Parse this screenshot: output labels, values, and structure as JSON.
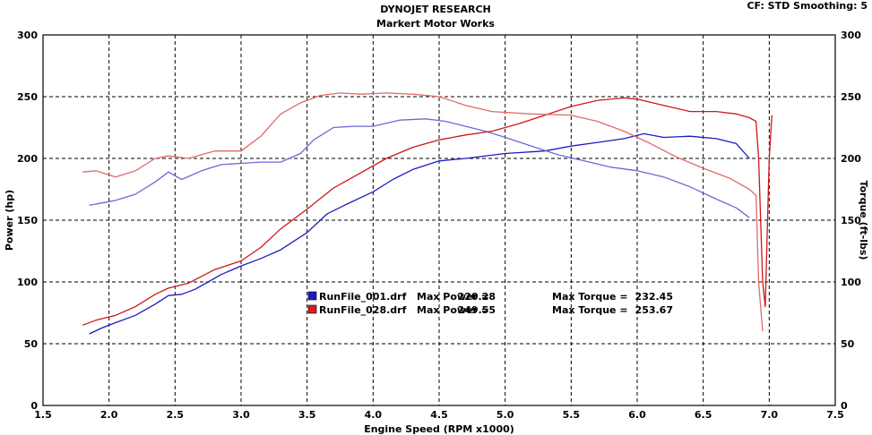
{
  "header": {
    "title": "DYNOJET RESEARCH",
    "subtitle": "Markert Motor Works",
    "settings": "CF: STD  Smoothing: 5"
  },
  "chart_data": {
    "type": "line",
    "xlabel": "Engine Speed (RPM x1000)",
    "ylabel_left": "Power (hp)",
    "ylabel_right": "Torque (ft-lbs)",
    "xlim": [
      1.5,
      7.5
    ],
    "ylim": [
      0,
      300
    ],
    "x_ticks": [
      "1.5",
      "2.0",
      "2.5",
      "3.0",
      "3.5",
      "4.0",
      "4.5",
      "5.0",
      "5.5",
      "6.0",
      "6.5",
      "7.0",
      "7.5"
    ],
    "y_ticks": [
      "0",
      "50",
      "100",
      "150",
      "200",
      "250",
      "300"
    ],
    "grid": true,
    "legend": [
      {
        "file": "RunFile_001.drf",
        "max_power_label": "Max Power =",
        "max_power": "220.28",
        "max_torque_label": "Max Torque =",
        "max_torque": "232.45",
        "color": "#1c1cc0"
      },
      {
        "file": "RunFile_028.drf",
        "max_power_label": "Max Power =",
        "max_power": "249.55",
        "max_torque_label": "Max Torque =",
        "max_torque": "253.67",
        "color": "#d02020"
      }
    ],
    "series": [
      {
        "run": "RunFile_001.drf",
        "measure": "power",
        "color": "#1c1cc0",
        "x": [
          1.85,
          1.95,
          2.05,
          2.2,
          2.35,
          2.45,
          2.55,
          2.65,
          2.75,
          2.85,
          3.0,
          3.15,
          3.3,
          3.5,
          3.65,
          3.8,
          4.0,
          4.15,
          4.3,
          4.5,
          4.7,
          5.0,
          5.3,
          5.5,
          5.7,
          5.9,
          6.05,
          6.2,
          6.4,
          6.6,
          6.75,
          6.85
        ],
        "y": [
          58,
          63,
          67,
          73,
          82,
          89,
          90,
          94,
          100,
          106,
          113,
          119,
          126,
          140,
          155,
          163,
          173,
          183,
          191,
          198,
          200,
          204,
          206,
          210,
          213,
          216,
          220,
          217,
          218,
          216,
          212,
          200
        ]
      },
      {
        "run": "RunFile_001.drf",
        "measure": "torque",
        "color": "#6a6ad8",
        "x": [
          1.85,
          1.95,
          2.05,
          2.2,
          2.35,
          2.45,
          2.55,
          2.7,
          2.85,
          3.0,
          3.15,
          3.3,
          3.45,
          3.55,
          3.7,
          3.85,
          4.0,
          4.2,
          4.4,
          4.55,
          4.7,
          4.85,
          5.0,
          5.2,
          5.4,
          5.6,
          5.8,
          6.0,
          6.2,
          6.4,
          6.6,
          6.75,
          6.85
        ],
        "y": [
          162,
          164,
          166,
          171,
          181,
          189,
          183,
          190,
          195,
          196,
          197,
          197,
          204,
          215,
          225,
          226,
          226,
          231,
          232,
          230,
          226,
          222,
          217,
          210,
          203,
          198,
          193,
          190,
          185,
          177,
          167,
          160,
          152
        ]
      },
      {
        "run": "RunFile_028.drf",
        "measure": "power",
        "color": "#cc1818",
        "x": [
          1.8,
          1.9,
          2.05,
          2.2,
          2.35,
          2.45,
          2.6,
          2.8,
          3.0,
          3.15,
          3.3,
          3.5,
          3.7,
          3.9,
          4.1,
          4.3,
          4.5,
          4.7,
          4.9,
          5.1,
          5.3,
          5.5,
          5.7,
          5.9,
          6.0,
          6.2,
          6.4,
          6.6,
          6.75,
          6.85,
          6.9,
          6.92,
          6.95,
          6.97,
          7.0,
          7.02
        ],
        "y": [
          65,
          69,
          73,
          80,
          90,
          95,
          99,
          110,
          117,
          128,
          143,
          159,
          176,
          188,
          200,
          209,
          215,
          219,
          222,
          228,
          235,
          242,
          247,
          249,
          248,
          243,
          238,
          238,
          236,
          233,
          230,
          200,
          100,
          80,
          200,
          235
        ]
      },
      {
        "run": "RunFile_028.drf",
        "measure": "torque",
        "color": "#e06a6a",
        "x": [
          1.8,
          1.9,
          2.05,
          2.2,
          2.35,
          2.45,
          2.6,
          2.8,
          3.0,
          3.15,
          3.3,
          3.45,
          3.6,
          3.75,
          3.9,
          4.1,
          4.3,
          4.5,
          4.7,
          4.9,
          5.2,
          5.5,
          5.7,
          5.9,
          6.1,
          6.3,
          6.5,
          6.7,
          6.85,
          6.9,
          6.92,
          6.95
        ],
        "y": [
          189,
          190,
          185,
          190,
          200,
          202,
          200,
          206,
          206,
          218,
          236,
          245,
          251,
          253,
          252,
          253,
          252,
          250,
          243,
          238,
          236,
          235,
          230,
          222,
          212,
          201,
          192,
          184,
          175,
          170,
          100,
          60
        ]
      }
    ]
  }
}
